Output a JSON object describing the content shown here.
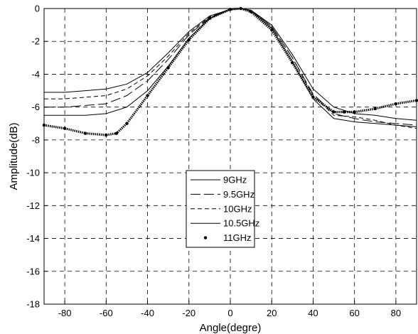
{
  "chart_data": {
    "type": "line",
    "title": "",
    "xlabel": "Angle(degre)",
    "ylabel": "Amplitude(dB)",
    "xlim": [
      -90,
      90
    ],
    "ylim": [
      -18,
      0
    ],
    "xticks": [
      -80,
      -60,
      -40,
      -20,
      0,
      20,
      40,
      60,
      80
    ],
    "yticks": [
      0,
      -2,
      -4,
      -6,
      -8,
      -10,
      -12,
      -14,
      -16,
      -18
    ],
    "grid": true,
    "legend_position": "center",
    "series": [
      {
        "name": "9GHz",
        "style": "solid",
        "x": [
          -90,
          -80,
          -70,
          -60,
          -50,
          -40,
          -30,
          -20,
          -10,
          0,
          5,
          10,
          20,
          30,
          40,
          50,
          60,
          70,
          80,
          90
        ],
        "y": [
          -5.1,
          -5.1,
          -5.0,
          -4.9,
          -4.6,
          -3.9,
          -2.7,
          -1.4,
          -0.45,
          -0.05,
          0,
          -0.1,
          -1.0,
          -2.8,
          -4.9,
          -6.0,
          -6.4,
          -6.5,
          -6.7,
          -6.8
        ]
      },
      {
        "name": "9.5GHz",
        "style": "longdash",
        "x": [
          -90,
          -80,
          -70,
          -60,
          -50,
          -40,
          -30,
          -20,
          -10,
          0,
          5,
          10,
          20,
          30,
          40,
          50,
          60,
          70,
          80,
          90
        ],
        "y": [
          -6.0,
          -6.0,
          -5.9,
          -5.8,
          -5.3,
          -4.4,
          -3.1,
          -1.6,
          -0.55,
          -0.05,
          0,
          -0.1,
          -1.1,
          -3.0,
          -5.2,
          -6.4,
          -6.7,
          -6.9,
          -7.0,
          -7.1
        ]
      },
      {
        "name": "10GHz",
        "style": "dash",
        "x": [
          -90,
          -80,
          -70,
          -60,
          -50,
          -40,
          -30,
          -20,
          -10,
          0,
          5,
          10,
          20,
          30,
          40,
          50,
          60,
          70,
          80,
          90
        ],
        "y": [
          -5.5,
          -5.5,
          -5.4,
          -5.3,
          -4.9,
          -4.1,
          -2.9,
          -1.5,
          -0.5,
          -0.05,
          0,
          -0.1,
          -1.1,
          -3.0,
          -5.3,
          -6.5,
          -6.6,
          -6.8,
          -7.1,
          -7.3
        ]
      },
      {
        "name": "10.5GHz",
        "style": "solid",
        "x": [
          -90,
          -80,
          -70,
          -60,
          -50,
          -40,
          -30,
          -20,
          -10,
          0,
          5,
          10,
          20,
          30,
          40,
          50,
          60,
          70,
          80,
          90
        ],
        "y": [
          -6.5,
          -6.5,
          -6.5,
          -6.4,
          -6.0,
          -5.0,
          -3.5,
          -1.8,
          -0.6,
          -0.05,
          0,
          -0.15,
          -1.2,
          -3.2,
          -5.5,
          -6.7,
          -6.9,
          -7.0,
          -7.1,
          -7.2
        ]
      },
      {
        "name": "11GHz",
        "style": "dotmarker",
        "x": [
          -90,
          -80,
          -70,
          -60,
          -55,
          -50,
          -40,
          -30,
          -20,
          -10,
          0,
          5,
          10,
          20,
          30,
          40,
          50,
          55,
          60,
          70,
          80,
          90
        ],
        "y": [
          -7.1,
          -7.3,
          -7.6,
          -7.7,
          -7.6,
          -7.0,
          -5.3,
          -3.6,
          -1.9,
          -0.6,
          -0.05,
          0,
          -0.2,
          -1.3,
          -3.3,
          -5.4,
          -6.3,
          -6.3,
          -6.3,
          -6.1,
          -5.8,
          -5.6
        ]
      }
    ]
  }
}
